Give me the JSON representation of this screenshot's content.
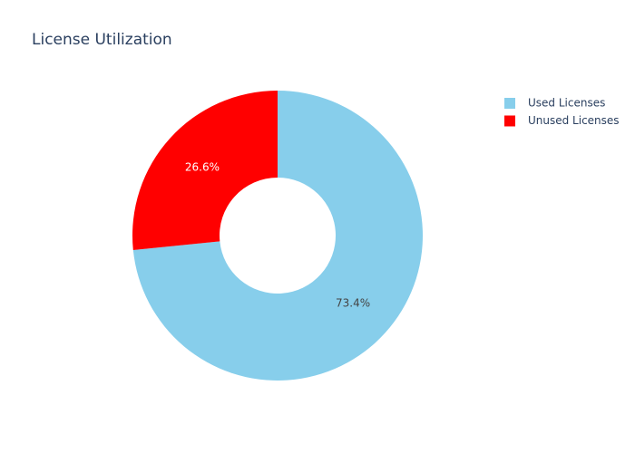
{
  "chart_data": {
    "type": "pie",
    "title": "License Utilization",
    "labels": [
      "Used Licenses",
      "Unused Licenses"
    ],
    "values": [
      73.4,
      26.6
    ],
    "value_labels": [
      "73.4%",
      "26.6%"
    ],
    "colors": [
      "#87ceeb",
      "#ff0000"
    ],
    "hole": 0.4,
    "legend": "top-right"
  }
}
